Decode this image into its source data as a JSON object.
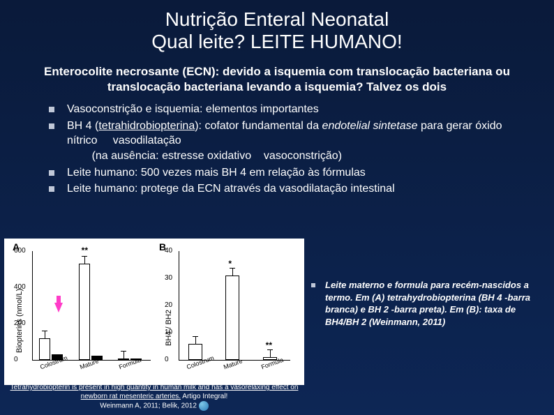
{
  "title": {
    "line1": "Nutrição Enteral Neonatal",
    "line2": "Qual leite? LEITE HUMANO!"
  },
  "subtitle": "Enterocolite necrosante (ECN): devido a isquemia com translocação bacteriana ou translocação bacteriana levando a isquemia? Talvez os dois",
  "bullets": [
    "Vasoconstrição e isquemia: elementos importantes",
    "BH 4 (tetrahidrobiopterina): cofator fundamental da endotelial sintetase para gerar óxido nítrico    vasodilatação\n        (na ausência: estresse oxidativo    vasoconstrição)",
    "Leite humano: 500 vezes mais BH 4 em relação às fórmulas",
    "Leite humano: protege da ECN através da vasodilatação intestinal"
  ],
  "bh4_label": "BH 4",
  "chart": {
    "background": "#ffffff",
    "panelA": {
      "label": "A",
      "y_label": "Biopterins (nmol/L)",
      "y_max": 600,
      "y_step": 200,
      "categories": [
        "Colostrum",
        "Mature",
        "Formula"
      ],
      "bars": [
        {
          "white": 120,
          "black": 30
        },
        {
          "white": 532,
          "black": 25,
          "star": "**"
        },
        {
          "white": 8,
          "black": 8
        }
      ],
      "bar_color_white": "#ffffff",
      "bar_color_black": "#000000"
    },
    "panelB": {
      "label": "B",
      "y_label": "BH4 / BH2",
      "y_max": 40,
      "y_step": 10,
      "categories": [
        "Colostrum",
        "Mature",
        "Formula"
      ],
      "bars": [
        {
          "val": 6
        },
        {
          "val": 31,
          "star": "*"
        },
        {
          "val": 1,
          "star": "**"
        }
      ],
      "bar_color": "#ffffff"
    }
  },
  "caption": "Leite materno e formula para recém-nascidos a termo. Em (A) tetrahydrobiopterina (BH 4 -barra branca) e BH 2 -barra preta). Em (B): taxa de BH4/BH 2 (Weinmann, 2011)",
  "footer": {
    "link": "Tetrahydrobiopterin is present in high quantity in human milk and has a vasorelaxing effect on newborn rat mesenteric arteries.",
    "plain": "Artigo Integral!",
    "refs": "Weinmann A, 2011; Belik, 2012"
  },
  "colors": {
    "bg_top": "#0a1a3a",
    "bg_bottom": "#0d2655",
    "text": "#ffffff",
    "bullet_marker": "#c0c8d8",
    "arrow": "#ff3cc8"
  }
}
